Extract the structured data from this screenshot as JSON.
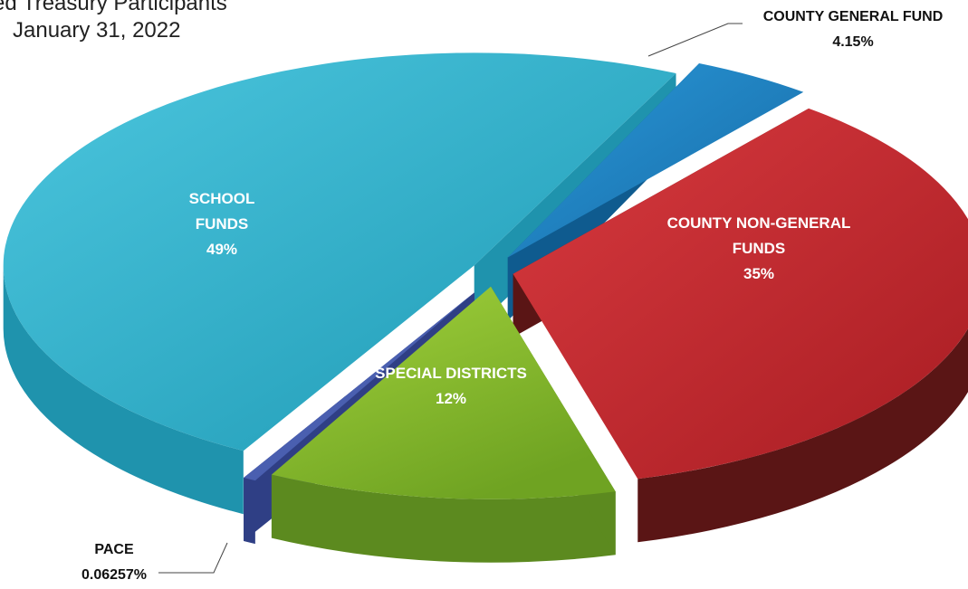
{
  "chart_data": {
    "type": "pie",
    "title_lines": [
      "ed Treasury Participants",
      "January 31, 2022"
    ],
    "slices": [
      {
        "name": "COUNTY GENERAL FUND",
        "label_lines": [
          "COUNTY GENERAL FUND",
          "4.15%"
        ],
        "value": 4.15,
        "color": "#1f86c8"
      },
      {
        "name": "COUNTY NON-GENERAL FUNDS",
        "label_lines": [
          "COUNTY NON-GENERAL",
          "FUNDS",
          "35%"
        ],
        "value": 35,
        "color": "#c4252b"
      },
      {
        "name": "SPECIAL DISTRICTS",
        "label_lines": [
          "SPECIAL DISTRICTS",
          "12%"
        ],
        "value": 12,
        "color": "#86bf2c"
      },
      {
        "name": "PACE",
        "label_lines": [
          "PACE",
          "0.06257%"
        ],
        "value": 0.06257,
        "color": "#4a5fb0"
      },
      {
        "name": "SCHOOL FUNDS",
        "label_lines": [
          "SCHOOL",
          "FUNDS",
          "49%"
        ],
        "value": 49,
        "color": "#2fb4cf"
      }
    ],
    "style": "3d-exploded",
    "legend": "none"
  }
}
